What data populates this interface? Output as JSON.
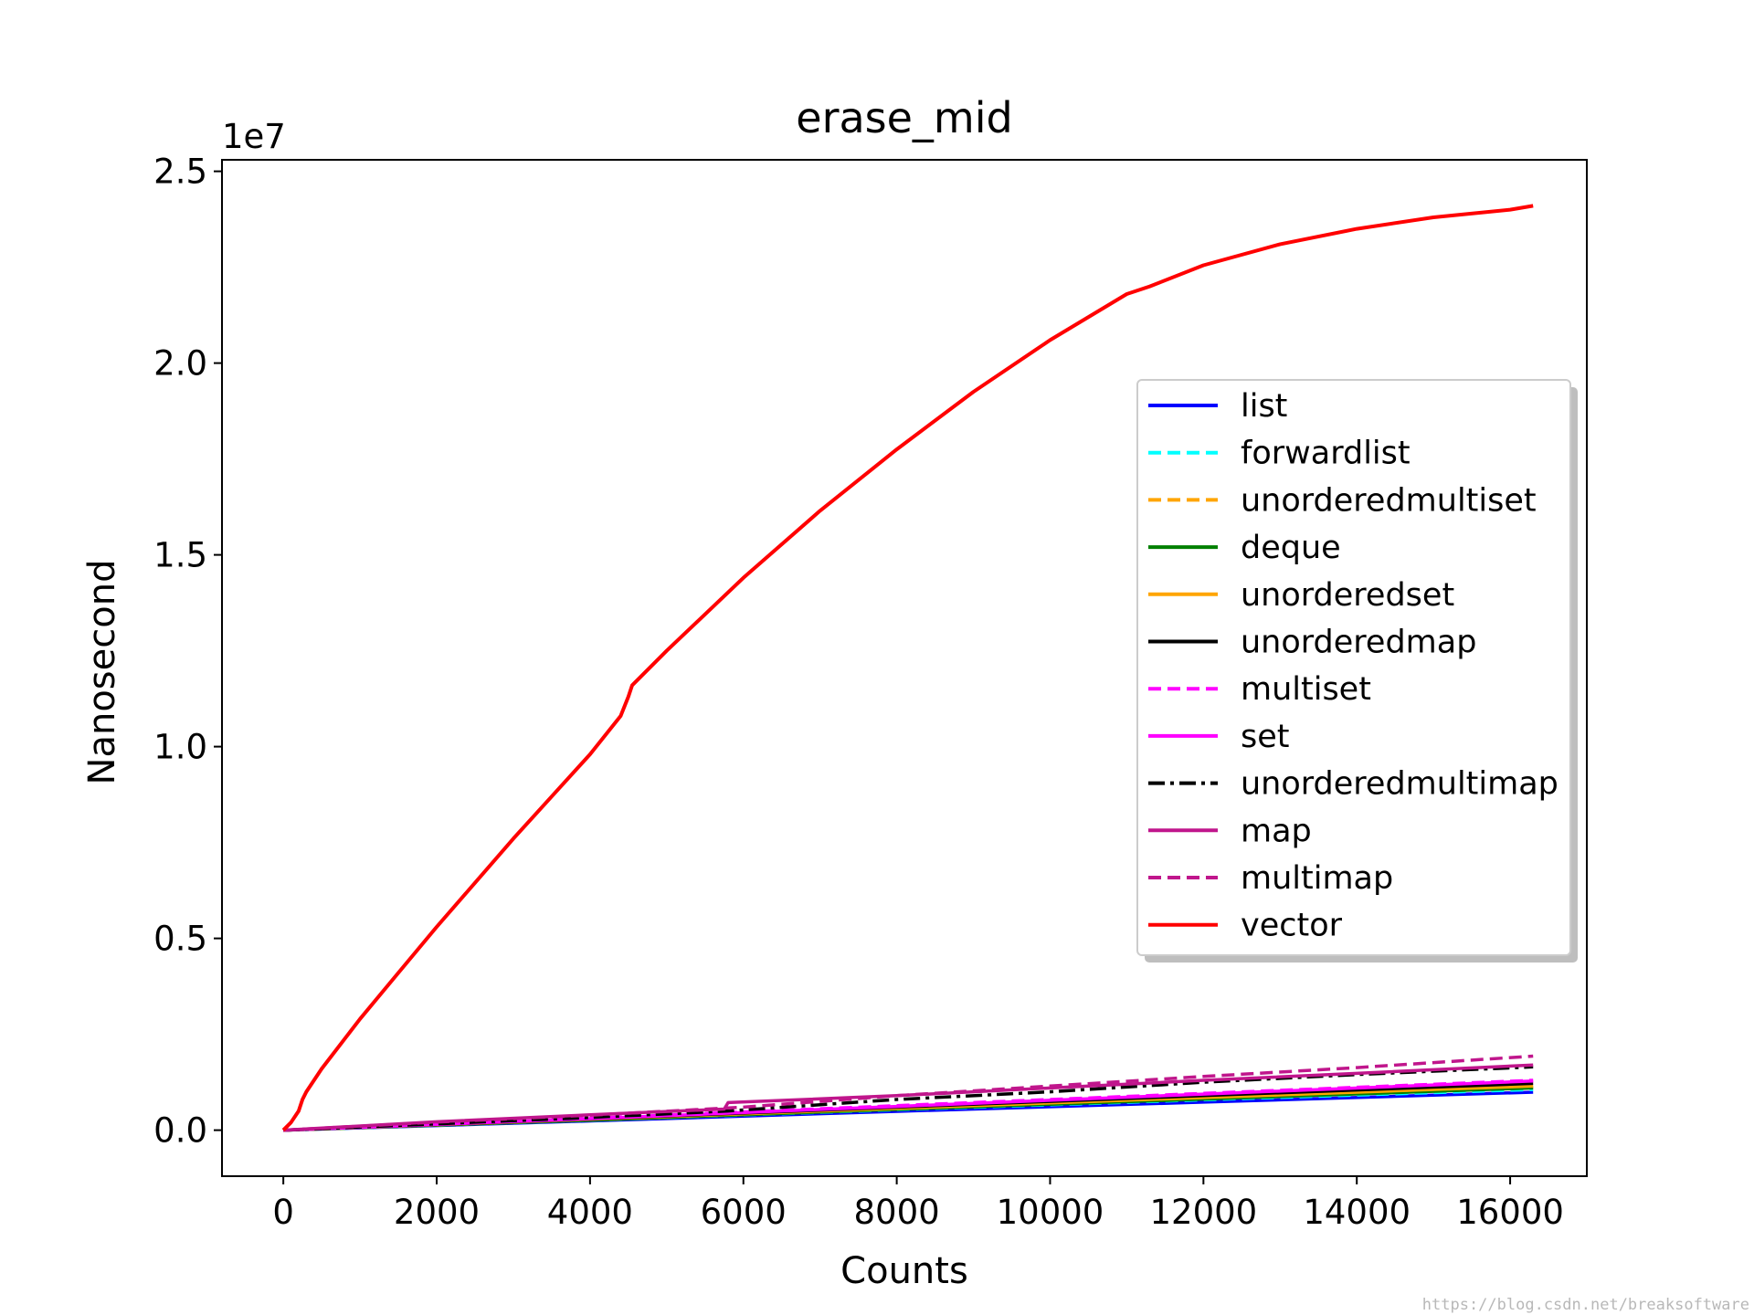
{
  "chart_data": {
    "type": "line",
    "title": "erase_mid",
    "xlabel": "Counts",
    "ylabel": "Nanosecond",
    "y_offset_label": "1e7",
    "xlim": [
      -800,
      17000
    ],
    "ylim": [
      -0.12,
      2.53
    ],
    "x_ticks": [
      0,
      2000,
      4000,
      6000,
      8000,
      10000,
      12000,
      14000,
      16000
    ],
    "x_tick_labels": [
      "0",
      "2000",
      "4000",
      "6000",
      "8000",
      "10000",
      "12000",
      "14000",
      "16000"
    ],
    "y_ticks": [
      0.0,
      0.5,
      1.0,
      1.5,
      2.0,
      2.5
    ],
    "y_tick_labels": [
      "0.0",
      "0.5",
      "1.0",
      "1.5",
      "2.0",
      "2.5"
    ],
    "grid": false,
    "legend_position": "center-right",
    "series": [
      {
        "name": "list",
        "color": "#0000ff",
        "dash": "solid",
        "points": [
          [
            0,
            0
          ],
          [
            4000,
            0.024
          ],
          [
            8000,
            0.049
          ],
          [
            12000,
            0.073
          ],
          [
            16300,
            0.099
          ]
        ]
      },
      {
        "name": "forwardlist",
        "color": "#00ffff",
        "dash": "dashed",
        "points": [
          [
            0,
            0
          ],
          [
            4000,
            0.026
          ],
          [
            8000,
            0.053
          ],
          [
            12000,
            0.079
          ],
          [
            16300,
            0.106
          ]
        ]
      },
      {
        "name": "unorderedmultiset",
        "color": "#ffa500",
        "dash": "dashed",
        "points": [
          [
            0,
            0
          ],
          [
            4000,
            0.027
          ],
          [
            8000,
            0.055
          ],
          [
            12000,
            0.082
          ],
          [
            16300,
            0.112
          ]
        ]
      },
      {
        "name": "deque",
        "color": "#008000",
        "dash": "solid",
        "points": [
          [
            0,
            0
          ],
          [
            4000,
            0.026
          ],
          [
            8000,
            0.054
          ],
          [
            12000,
            0.081
          ],
          [
            16300,
            0.11
          ]
        ]
      },
      {
        "name": "unorderedset",
        "color": "#ffa500",
        "dash": "solid",
        "points": [
          [
            0,
            0
          ],
          [
            4000,
            0.028
          ],
          [
            8000,
            0.057
          ],
          [
            12000,
            0.085
          ],
          [
            16300,
            0.115
          ]
        ]
      },
      {
        "name": "unorderedmap",
        "color": "#000000",
        "dash": "solid",
        "points": [
          [
            0,
            0
          ],
          [
            4000,
            0.029
          ],
          [
            8000,
            0.06
          ],
          [
            12000,
            0.09
          ],
          [
            16300,
            0.122
          ]
        ]
      },
      {
        "name": "multiset",
        "color": "#ff00ff",
        "dash": "dashed",
        "points": [
          [
            0,
            0
          ],
          [
            4000,
            0.031
          ],
          [
            8000,
            0.064
          ],
          [
            12000,
            0.096
          ],
          [
            16300,
            0.13
          ]
        ]
      },
      {
        "name": "set",
        "color": "#ff00ff",
        "dash": "solid",
        "points": [
          [
            0,
            0
          ],
          [
            4000,
            0.03
          ],
          [
            8000,
            0.062
          ],
          [
            12000,
            0.094
          ],
          [
            16300,
            0.128
          ]
        ]
      },
      {
        "name": "unorderedmultimap",
        "color": "#000000",
        "dash": "dashdot",
        "points": [
          [
            0,
            0
          ],
          [
            4000,
            0.033
          ],
          [
            5800,
            0.05
          ],
          [
            8000,
            0.08
          ],
          [
            10000,
            0.1
          ],
          [
            12000,
            0.125
          ],
          [
            14000,
            0.145
          ],
          [
            16300,
            0.165
          ]
        ]
      },
      {
        "name": "map",
        "color": "#c0168c",
        "dash": "solid",
        "points": [
          [
            0,
            0
          ],
          [
            2000,
            0.022
          ],
          [
            4000,
            0.04
          ],
          [
            5750,
            0.055
          ],
          [
            5800,
            0.072
          ],
          [
            8000,
            0.09
          ],
          [
            10000,
            0.11
          ],
          [
            12000,
            0.13
          ],
          [
            14000,
            0.148
          ],
          [
            16300,
            0.17
          ]
        ]
      },
      {
        "name": "multimap",
        "color": "#c0168c",
        "dash": "dashed",
        "points": [
          [
            0,
            0
          ],
          [
            2000,
            0.021
          ],
          [
            4000,
            0.039
          ],
          [
            6000,
            0.06
          ],
          [
            8000,
            0.09
          ],
          [
            10000,
            0.115
          ],
          [
            12000,
            0.14
          ],
          [
            14000,
            0.163
          ],
          [
            16300,
            0.193
          ]
        ]
      },
      {
        "name": "vector",
        "color": "#ff0000",
        "dash": "solid",
        "points": [
          [
            0,
            0
          ],
          [
            100,
            0.02
          ],
          [
            200,
            0.05
          ],
          [
            250,
            0.08
          ],
          [
            300,
            0.1
          ],
          [
            500,
            0.16
          ],
          [
            1000,
            0.29
          ],
          [
            1500,
            0.41
          ],
          [
            2000,
            0.53
          ],
          [
            2500,
            0.645
          ],
          [
            3000,
            0.76
          ],
          [
            3500,
            0.87
          ],
          [
            4000,
            0.98
          ],
          [
            4400,
            1.08
          ],
          [
            4500,
            1.13
          ],
          [
            4550,
            1.16
          ],
          [
            5000,
            1.25
          ],
          [
            6000,
            1.44
          ],
          [
            7000,
            1.615
          ],
          [
            8000,
            1.775
          ],
          [
            9000,
            1.925
          ],
          [
            10000,
            2.06
          ],
          [
            11000,
            2.18
          ],
          [
            11300,
            2.2
          ],
          [
            12000,
            2.255
          ],
          [
            13000,
            2.31
          ],
          [
            14000,
            2.35
          ],
          [
            15000,
            2.38
          ],
          [
            16000,
            2.4
          ],
          [
            16300,
            2.41
          ]
        ]
      }
    ]
  },
  "watermark": "https://blog.csdn.net/breaksoftware"
}
